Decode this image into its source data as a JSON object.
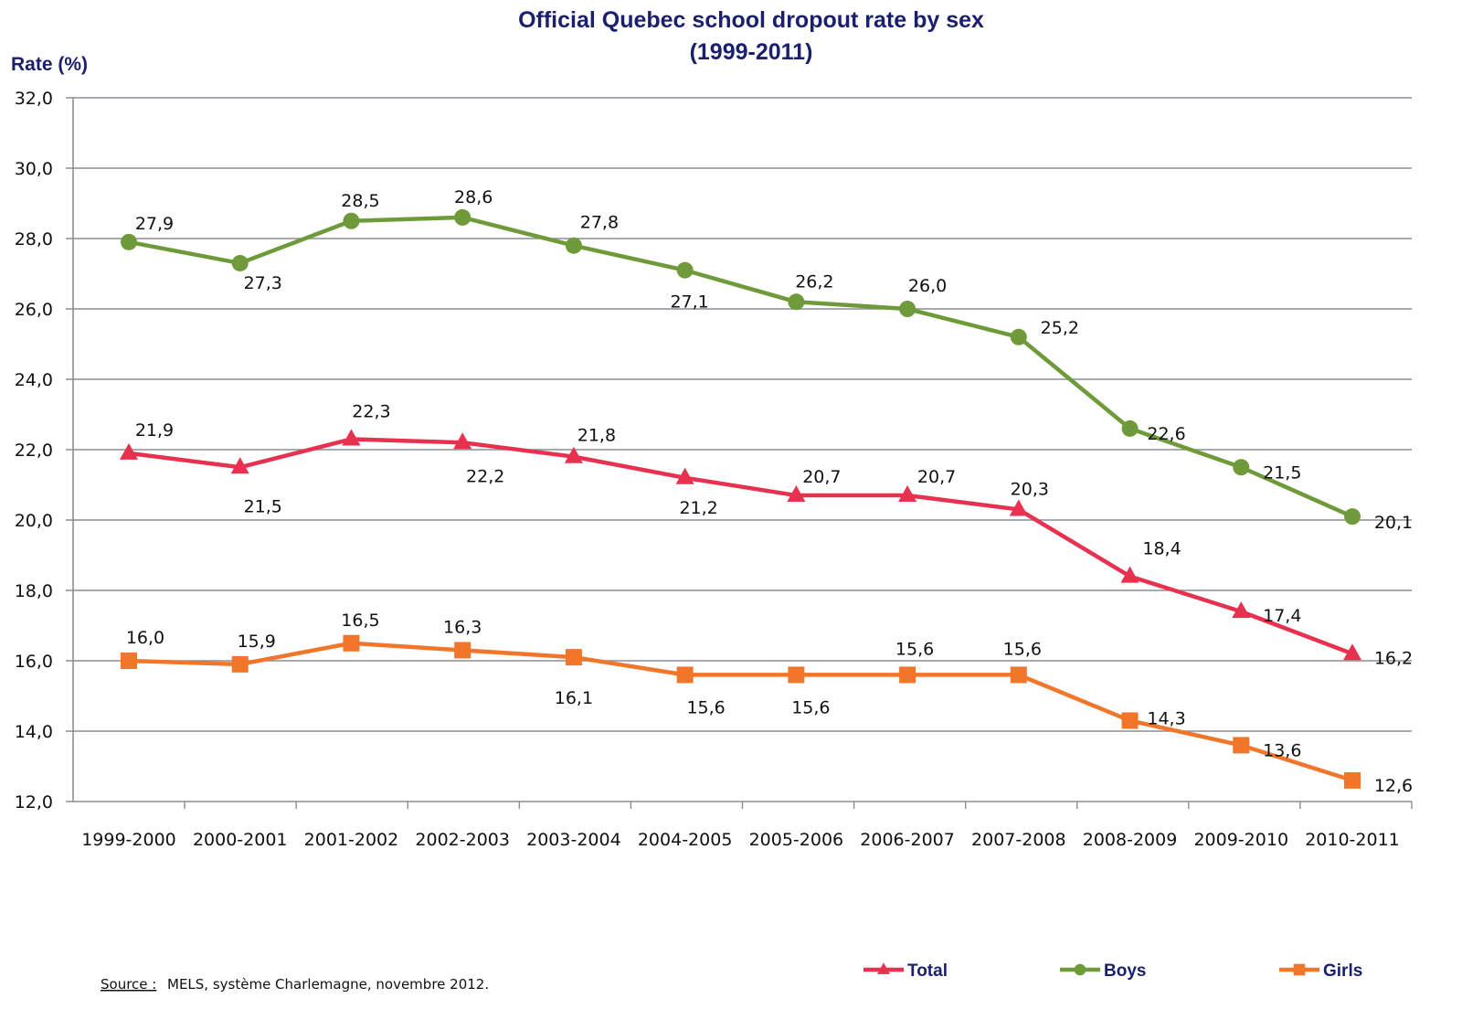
{
  "chart_data": {
    "type": "line",
    "title": "Official Quebec school dropout rate by sex",
    "subtitle": "(1999-2011)",
    "ylabel": "Rate (%)",
    "xlabel": "",
    "ylim": [
      12,
      32
    ],
    "yticks": [
      "12,0",
      "14,0",
      "16,0",
      "18,0",
      "20,0",
      "22,0",
      "24,0",
      "26,0",
      "28,0",
      "30,0",
      "32,0"
    ],
    "ytick_values": [
      12,
      14,
      16,
      18,
      20,
      22,
      24,
      26,
      28,
      30,
      32
    ],
    "grid": true,
    "legend_position": "bottom",
    "categories": [
      "1999-2000",
      "2000-2001",
      "2001-2002",
      "2002-2003",
      "2003-2004",
      "2004-2005",
      "2005-2006",
      "2006-2007",
      "2007-2008",
      "2008-2009",
      "2009-2010",
      "2010-2011"
    ],
    "series": [
      {
        "name": "Total",
        "marker": "triangle",
        "color": "#e8304f",
        "values": [
          21.9,
          21.5,
          22.3,
          22.2,
          21.8,
          21.2,
          20.7,
          20.7,
          20.3,
          18.4,
          17.4,
          16.2
        ],
        "labels": [
          "21,9",
          "21,5",
          "22,3",
          "22,2",
          "21,8",
          "21,2",
          "20,7",
          "20,7",
          "20,3",
          "18,4",
          "17,4",
          "16,2"
        ]
      },
      {
        "name": "Boys",
        "marker": "circle",
        "color": "#6f9a3a",
        "values": [
          27.9,
          27.3,
          28.5,
          28.6,
          27.8,
          27.1,
          26.2,
          26.0,
          25.2,
          22.6,
          21.5,
          20.1
        ],
        "labels": [
          "27,9",
          "27,3",
          "28,5",
          "28,6",
          "27,8",
          "27,1",
          "26,2",
          "26,0",
          "25,2",
          "22,6",
          "21,5",
          "20,1"
        ]
      },
      {
        "name": "Girls",
        "marker": "square",
        "color": "#f2762a",
        "values": [
          16.0,
          15.9,
          16.5,
          16.3,
          16.1,
          15.6,
          15.6,
          15.6,
          15.6,
          14.3,
          13.6,
          12.6
        ],
        "labels": [
          "16,0",
          "15,9",
          "16,5",
          "16,3",
          "16,1",
          "15,6",
          "15,6",
          "15,6",
          "15,6",
          "14,3",
          "13,6",
          "12,6"
        ]
      }
    ],
    "source_label": "Source :",
    "source_text": "MELS, système Charlemagne, novembre 2012."
  }
}
